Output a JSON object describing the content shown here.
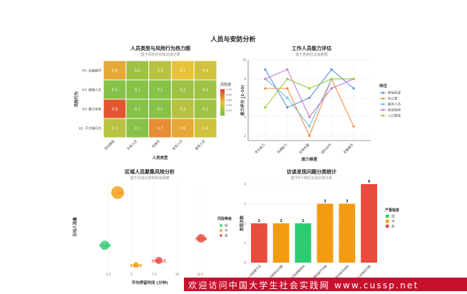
{
  "page_title": "人员与安防分析",
  "watermark": "欢迎访问中国大学生社会实践网 www.cussp.net",
  "chart_data": [
    {
      "type": "heatmap",
      "title": "人员类型与风险行为热力图",
      "subtitle": "基于风险评估和访谈记录",
      "xlabel": "人员类型",
      "ylabel": "风险行为",
      "x_categories": [
        "流动摊贩",
        "外卖人员",
        "快递员",
        "拾荒人员",
        "游荡人员"
      ],
      "y_categories": [
        "A5: 设施破坏",
        "A7: 尾随人员",
        "A3: 暴力冲突",
        "A2: 不文明行为"
      ],
      "values": [
        [
          0.6,
          0.2,
          0.3,
          0.5,
          0.4
        ],
        [
          0.1,
          0.1,
          0.1,
          0.2,
          0.2
        ],
        [
          0.9,
          0.1,
          0.1,
          0.3,
          0.2
        ],
        [
          0.3,
          0.1,
          0.7,
          0.6,
          0.4
        ]
      ],
      "colorbar": {
        "title": "风险值",
        "min": 0,
        "max": 1,
        "ticks": [
          0.2,
          0.4,
          0.6,
          0.8,
          1.0
        ],
        "colors": [
          "#6cc24a",
          "#e8c33a",
          "#e23b2e"
        ]
      }
    },
    {
      "type": "line",
      "title": "工作人员能力评估",
      "subtitle": "基于各岗位访谈数据",
      "xlabel": "能力维度",
      "ylabel": "能力评分 (1-10)",
      "categories": [
        "专业能力",
        "沟通能力",
        "应急处置",
        "团队协作",
        "设备操作"
      ],
      "ylim": [
        1.5,
        10
      ],
      "yticks": [
        2,
        4,
        6,
        8,
        10
      ],
      "legend_title": "岗位",
      "series": [
        {
          "name": "安保巡逻",
          "color": "#5b8fd6",
          "values": [
            9,
            5,
            6,
            9,
            7
          ]
        },
        {
          "name": "办公室",
          "color": "#f28c3b",
          "values": [
            7,
            7,
            2,
            8,
            3
          ]
        },
        {
          "name": "服务人员",
          "color": "#6cbfe8",
          "values": [
            8,
            6,
            3,
            8,
            8
          ]
        },
        {
          "name": "前台接待",
          "color": "#c779d0",
          "values": [
            8,
            9,
            4,
            7,
            8
          ]
        },
        {
          "name": "入口安保",
          "color": "#9acd32",
          "values": [
            5,
            8,
            7,
            8,
            8
          ]
        }
      ]
    },
    {
      "type": "scatter",
      "title": "区域人员聚集风险分析",
      "subtitle": "基于访谈记录和现场观察",
      "xlabel": "平均停留时间 (分钟)",
      "ylabel": "日均人流量",
      "xlim": [
        0,
        14
      ],
      "ylim": [
        0,
        330
      ],
      "xticks": [
        2.5,
        5,
        7.5,
        10,
        12.5
      ],
      "legend_title": "风险等级",
      "legend": [
        {
          "label": "低",
          "color": "#2ecc71"
        },
        {
          "label": "中",
          "color": "#f39c12"
        },
        {
          "label": "高",
          "color": "#e74c3c"
        }
      ],
      "points": [
        {
          "label": "人口高密",
          "x": 3.5,
          "y": 290,
          "size": 18,
          "level": "中"
        },
        {
          "label": "主要街道",
          "x": 12.6,
          "y": 118,
          "size": 12,
          "level": "高"
        },
        {
          "label": "出口通道",
          "x": 2.1,
          "y": 92,
          "size": 13,
          "level": "低"
        },
        {
          "label": "休息区域",
          "x": 5.5,
          "y": 18,
          "size": 8,
          "level": "中"
        },
        {
          "label": "主楼核心区",
          "x": 8.0,
          "y": 35,
          "size": 10,
          "level": "高"
        }
      ]
    },
    {
      "type": "bar",
      "title": "访谈发现问题分类统计",
      "subtitle": "基于6个岗位访谈记录分析",
      "xlabel": "",
      "ylabel": "发现次数",
      "ylim": [
        0,
        4
      ],
      "yticks": [
        0,
        1,
        2,
        3,
        4
      ],
      "legend_title": "严重程度",
      "legend": [
        {
          "label": "低",
          "color": "#2ecc71"
        },
        {
          "label": "中",
          "color": "#f39c12"
        },
        {
          "label": "高",
          "color": "#e74c3c"
        }
      ],
      "categories": [
        "人员配置不足",
        "设施老化问题",
        "应急预案缺失",
        "管理制度不完善",
        "培训体系缺失",
        "外部人员管控问题"
      ],
      "values": [
        2,
        2,
        2,
        3,
        3,
        4
      ],
      "severity": [
        "高",
        "中",
        "低",
        "中",
        "中",
        "高"
      ]
    }
  ]
}
